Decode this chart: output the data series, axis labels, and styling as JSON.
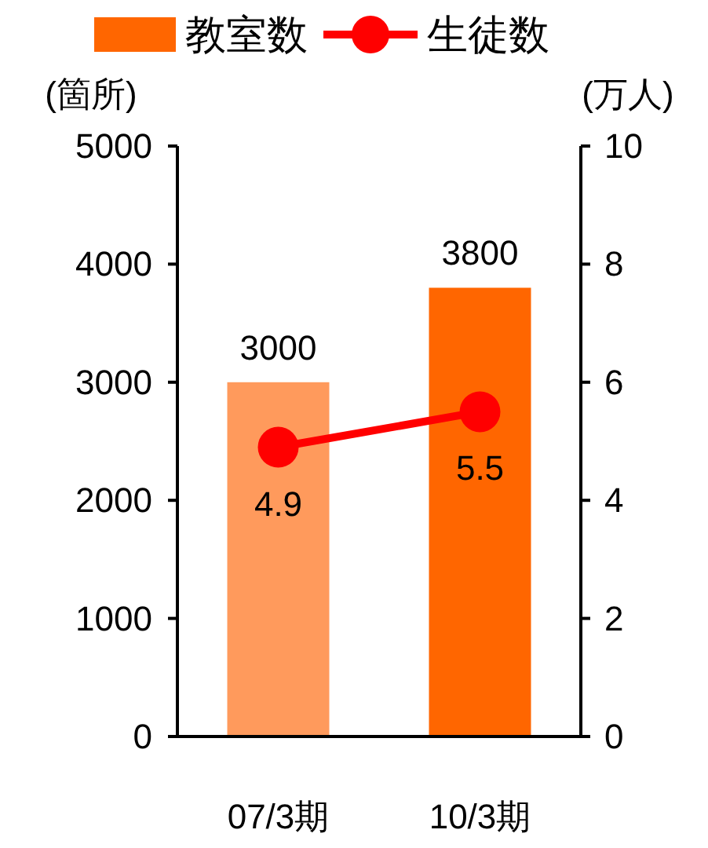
{
  "chart_data": {
    "type": "bar",
    "categories": [
      "07/3期",
      "10/3期"
    ],
    "ylabel": "(箇所)",
    "y2label": "(万人)",
    "ylim": [
      0,
      5000
    ],
    "yticks": [
      0,
      1000,
      2000,
      3000,
      4000,
      5000
    ],
    "y2lim": [
      0,
      10
    ],
    "y2ticks": [
      0,
      2,
      4,
      6,
      8,
      10
    ],
    "legend": "top",
    "data_labels": true,
    "marker": "circle",
    "series": [
      {
        "name": "教室数",
        "colors": [
          "#ff9a5c",
          "#ff6600"
        ],
        "values": [
          3000,
          3800
        ]
      },
      {
        "name": "生徒数",
        "type": "line",
        "color": "#ff0000",
        "axis": "y2",
        "values": [
          4.9,
          5.5
        ]
      }
    ]
  }
}
